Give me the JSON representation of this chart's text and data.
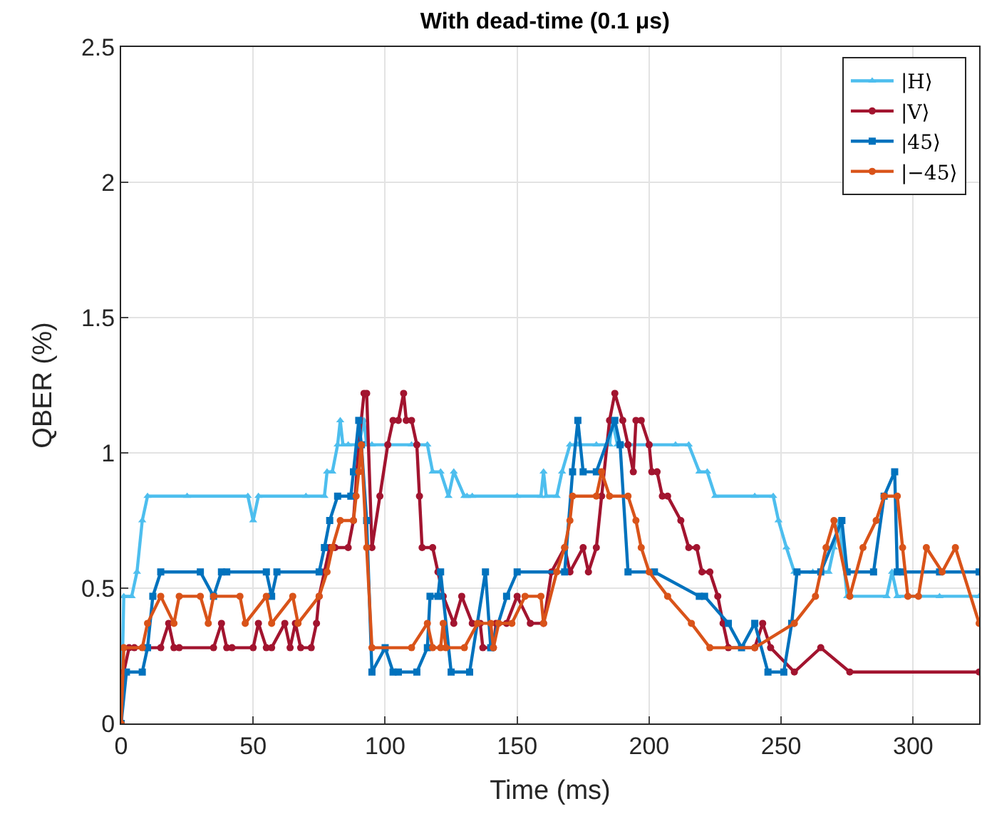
{
  "chart_data": {
    "type": "line",
    "title": "With dead-time (0.1 μs)",
    "xlabel": "Time (ms)",
    "ylabel": "QBER (%)",
    "xlim": [
      0,
      325
    ],
    "xticks": [
      0,
      50,
      100,
      150,
      200,
      250,
      300
    ],
    "ylim": [
      0,
      2.5
    ],
    "yticks": [
      0,
      0.5,
      1,
      1.5,
      2,
      2.5
    ],
    "grid": true,
    "legend": "top right",
    "line_style": "solid",
    "series": [
      {
        "name": "|H⟩",
        "color": "#4dbeee",
        "marker": "triangle",
        "x": [
          0,
          1,
          4,
          6,
          8,
          10,
          25,
          48,
          50,
          52,
          70,
          77,
          78,
          80,
          82,
          83,
          84,
          86,
          90,
          92,
          93,
          95,
          110,
          116,
          118,
          121,
          124,
          126,
          130,
          131,
          133,
          150,
          159,
          160,
          161,
          165,
          167,
          170,
          173,
          180,
          185,
          186,
          188,
          190,
          200,
          210,
          215,
          219,
          222,
          225,
          240,
          247,
          249,
          252,
          255,
          262,
          268,
          270,
          272,
          275,
          290,
          292,
          294,
          310,
          325
        ],
        "values": [
          0,
          0.47,
          0.47,
          0.56,
          0.75,
          0.84,
          0.84,
          0.84,
          0.75,
          0.84,
          0.84,
          0.84,
          0.93,
          0.93,
          1.03,
          1.12,
          1.03,
          1.03,
          1.03,
          1.12,
          1.03,
          1.03,
          1.03,
          1.03,
          0.93,
          0.93,
          0.84,
          0.93,
          0.84,
          0.84,
          0.84,
          0.84,
          0.84,
          0.93,
          0.84,
          0.84,
          0.93,
          1.03,
          1.03,
          1.03,
          1.03,
          1.12,
          1.03,
          1.03,
          1.03,
          1.03,
          1.03,
          0.93,
          0.93,
          0.84,
          0.84,
          0.84,
          0.75,
          0.65,
          0.56,
          0.56,
          0.56,
          0.65,
          0.75,
          0.47,
          0.47,
          0.56,
          0.47,
          0.47,
          0.47
        ]
      },
      {
        "name": "|V⟩",
        "color": "#a2142f",
        "marker": "circle",
        "x": [
          0,
          1,
          3,
          5,
          15,
          18,
          20,
          22,
          35,
          38,
          40,
          42,
          50,
          52,
          55,
          57,
          62,
          64,
          66,
          68,
          72,
          74,
          75,
          77,
          79,
          81,
          86,
          88,
          90,
          92,
          93,
          95,
          98,
          101,
          103,
          105,
          107,
          108,
          110,
          112,
          113,
          114,
          118,
          120,
          122,
          126,
          129,
          133,
          136,
          137,
          141,
          142,
          146,
          150,
          155,
          160,
          163,
          168,
          170,
          175,
          177,
          180,
          182,
          185,
          187,
          190,
          192,
          194,
          195,
          197,
          200,
          201,
          203,
          205,
          207,
          212,
          215,
          218,
          220,
          223,
          226,
          228,
          230,
          240,
          243,
          246,
          255,
          265,
          276,
          325
        ],
        "values": [
          0,
          0.19,
          0.28,
          0.28,
          0.28,
          0.37,
          0.28,
          0.28,
          0.28,
          0.37,
          0.28,
          0.28,
          0.28,
          0.37,
          0.28,
          0.28,
          0.37,
          0.28,
          0.37,
          0.28,
          0.28,
          0.37,
          0.47,
          0.56,
          0.65,
          0.65,
          0.65,
          0.75,
          1.03,
          1.22,
          1.22,
          0.65,
          0.84,
          1.03,
          1.12,
          1.12,
          1.22,
          1.12,
          1.12,
          1.03,
          0.84,
          0.65,
          0.65,
          0.56,
          0.47,
          0.37,
          0.47,
          0.37,
          0.37,
          0.28,
          0.28,
          0.37,
          0.37,
          0.47,
          0.37,
          0.37,
          0.56,
          0.65,
          0.56,
          0.65,
          0.56,
          0.65,
          0.84,
          1.12,
          1.22,
          1.12,
          1.03,
          0.93,
          1.12,
          1.12,
          1.03,
          0.93,
          0.93,
          0.84,
          0.84,
          0.75,
          0.65,
          0.65,
          0.56,
          0.56,
          0.47,
          0.37,
          0.28,
          0.28,
          0.37,
          0.28,
          0.19,
          0.28,
          0.19,
          0.19
        ]
      },
      {
        "name": "|45⟩",
        "color": "#0072bd",
        "marker": "square",
        "x": [
          0,
          2,
          8,
          10,
          12,
          15,
          30,
          35,
          38,
          40,
          55,
          57,
          59,
          75,
          77,
          79,
          82,
          87,
          88,
          90,
          91,
          93,
          95,
          100,
          103,
          105,
          112,
          116,
          117,
          120,
          121,
          125,
          132,
          138,
          140,
          146,
          150,
          168,
          171,
          173,
          175,
          180,
          187,
          189,
          192,
          202,
          219,
          221,
          230,
          235,
          240,
          245,
          251,
          254,
          256,
          265,
          273,
          275,
          285,
          289,
          293,
          294,
          296,
          310,
          325
        ],
        "values": [
          0,
          0.19,
          0.19,
          0.28,
          0.47,
          0.56,
          0.56,
          0.47,
          0.56,
          0.56,
          0.56,
          0.47,
          0.56,
          0.56,
          0.65,
          0.75,
          0.84,
          0.84,
          0.93,
          1.12,
          1.03,
          0.75,
          0.19,
          0.28,
          0.19,
          0.19,
          0.19,
          0.28,
          0.47,
          0.47,
          0.56,
          0.19,
          0.19,
          0.56,
          0.28,
          0.47,
          0.56,
          0.56,
          0.93,
          1.12,
          0.93,
          0.93,
          1.12,
          1.03,
          0.56,
          0.56,
          0.47,
          0.47,
          0.37,
          0.28,
          0.37,
          0.19,
          0.19,
          0.37,
          0.56,
          0.56,
          0.75,
          0.56,
          0.56,
          0.84,
          0.93,
          0.56,
          0.56,
          0.56,
          0.56
        ]
      },
      {
        "name": "|−45⟩",
        "color": "#d95319",
        "marker": "circle",
        "x": [
          0,
          1,
          8,
          10,
          15,
          20,
          22,
          30,
          33,
          35,
          45,
          47,
          55,
          57,
          65,
          67,
          75,
          78,
          80,
          83,
          88,
          89,
          90,
          91,
          93,
          95,
          110,
          116,
          118,
          121,
          122,
          123,
          130,
          135,
          140,
          141,
          143,
          148,
          153,
          159,
          160,
          165,
          168,
          170,
          171,
          180,
          182,
          185,
          192,
          195,
          197,
          200,
          207,
          216,
          223,
          240,
          255,
          263,
          267,
          270,
          276,
          281,
          286,
          289,
          294,
          296,
          298,
          302,
          305,
          311,
          316,
          325
        ],
        "values": [
          0,
          0.28,
          0.28,
          0.37,
          0.47,
          0.37,
          0.47,
          0.47,
          0.37,
          0.47,
          0.47,
          0.37,
          0.47,
          0.37,
          0.47,
          0.37,
          0.47,
          0.56,
          0.65,
          0.75,
          0.75,
          0.84,
          0.93,
          1.03,
          0.65,
          0.28,
          0.28,
          0.37,
          0.28,
          0.28,
          0.37,
          0.28,
          0.28,
          0.37,
          0.37,
          0.28,
          0.37,
          0.37,
          0.47,
          0.47,
          0.37,
          0.56,
          0.65,
          0.75,
          0.84,
          0.84,
          0.93,
          0.84,
          0.84,
          0.75,
          0.65,
          0.56,
          0.47,
          0.37,
          0.28,
          0.28,
          0.37,
          0.47,
          0.65,
          0.75,
          0.47,
          0.65,
          0.75,
          0.84,
          0.84,
          0.65,
          0.47,
          0.47,
          0.65,
          0.56,
          0.65,
          0.37
        ]
      }
    ]
  }
}
